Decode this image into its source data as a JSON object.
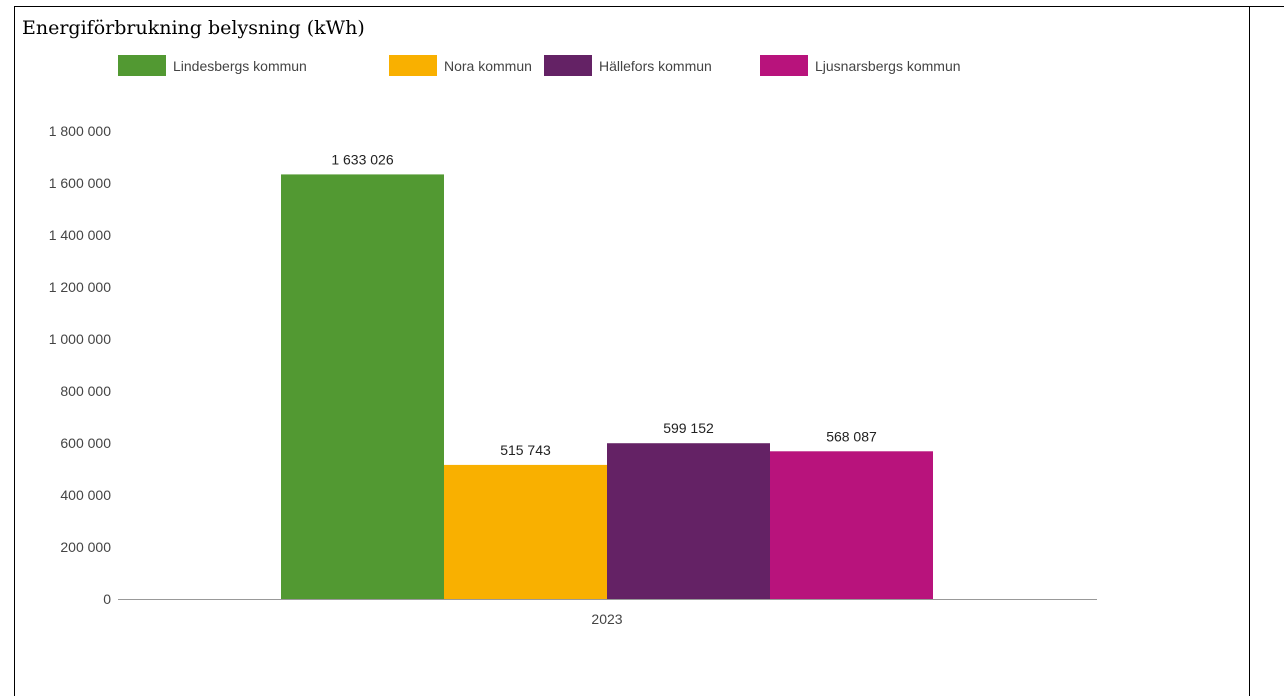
{
  "chart_data": {
    "type": "bar",
    "title": "Energiförbrukning belysning (kWh)",
    "categories": [
      "2023"
    ],
    "series": [
      {
        "name": "Lindesbergs kommun",
        "values": [
          1633026
        ],
        "label": "1 633 026",
        "color": "#529932"
      },
      {
        "name": "Nora kommun",
        "values": [
          515743
        ],
        "label": "515 743",
        "color": "#f9b000"
      },
      {
        "name": "Hällefors kommun",
        "values": [
          599152
        ],
        "label": "599 152",
        "color": "#642265"
      },
      {
        "name": "Ljusnarsbergs kommun",
        "values": [
          568087
        ],
        "label": "568 087",
        "color": "#b8137c"
      }
    ],
    "ylim": [
      0,
      1800000
    ],
    "yticks": [
      0,
      200000,
      400000,
      600000,
      800000,
      1000000,
      1200000,
      1400000,
      1600000,
      1800000
    ],
    "ytick_labels": [
      "0",
      "200 000",
      "400 000",
      "600 000",
      "800 000",
      "1 000 000",
      "1 200 000",
      "1 400 000",
      "1 600 000",
      "1 800 000"
    ],
    "xlabel": "",
    "ylabel": "",
    "legend_position": "top",
    "grid": false
  }
}
